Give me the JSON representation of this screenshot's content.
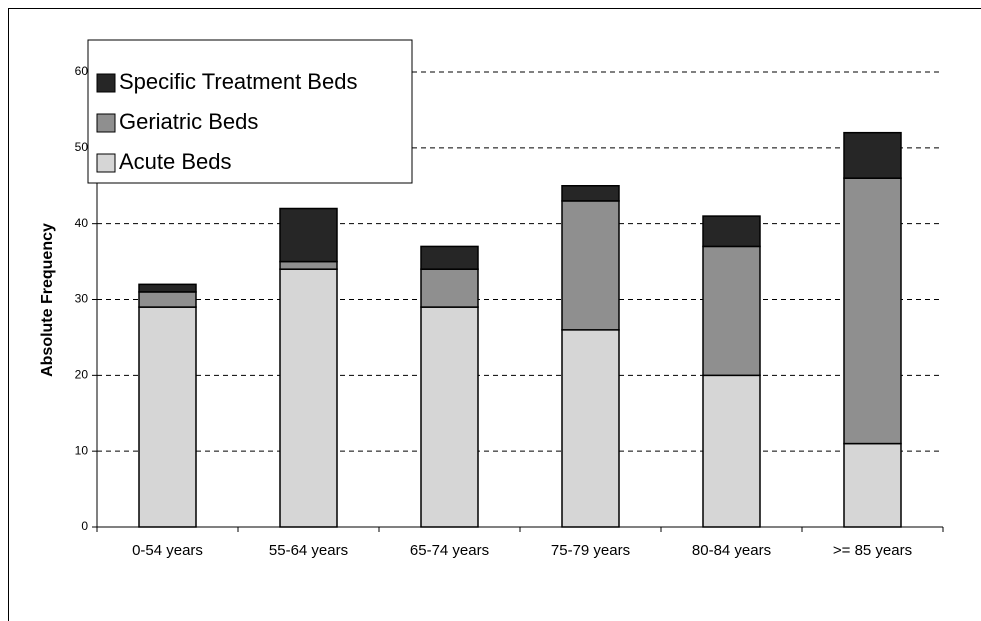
{
  "chart_data": {
    "type": "stacked_bar",
    "y_label": "Absolute Frequency",
    "categories": [
      "0-54 years",
      "55-64 years",
      "65-74 years",
      "75-79 years",
      "80-84 years",
      ">= 85 years"
    ],
    "series": [
      {
        "name": "Acute Beds",
        "color": "#d6d6d6",
        "values": [
          29,
          34,
          29,
          26,
          20,
          11
        ]
      },
      {
        "name": "Geriatric Beds",
        "color": "#8f8f8f",
        "values": [
          2,
          1,
          5,
          17,
          17,
          35
        ]
      },
      {
        "name": "Specific Treatment Beds",
        "color": "#262626",
        "values": [
          1,
          7,
          3,
          2,
          4,
          6
        ]
      }
    ],
    "ylim": [
      0,
      60
    ],
    "yticks": [
      0,
      10,
      20,
      30,
      40,
      50,
      60
    ],
    "grid": true,
    "legend": "top-left"
  }
}
